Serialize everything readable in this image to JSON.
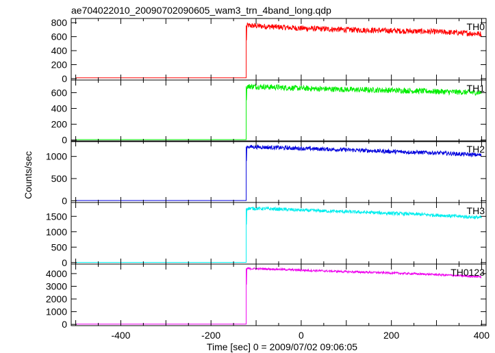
{
  "chart_data": {
    "type": "line",
    "title": "ae704022010_20090702090605_wam3_trn_4band_long.qdp",
    "xlabel": "Time [sec] 0 = 2009/07/02 09:06:05",
    "ylabel": "Counts/sec",
    "xlim": [
      -510,
      410
    ],
    "x_ticks": [
      -400,
      -200,
      0,
      200,
      400
    ],
    "burst_onset_x": -122,
    "panels": [
      {
        "name": "TH0",
        "color": "#ff0000",
        "ylim": [
          -20,
          860
        ],
        "y_ticks": [
          0,
          200,
          400,
          600,
          800
        ],
        "points": [
          [
            -500,
            12
          ],
          [
            -122,
            12
          ],
          [
            -121,
            760
          ],
          [
            -60,
            740
          ],
          [
            0,
            720
          ],
          [
            100,
            700
          ],
          [
            200,
            685
          ],
          [
            300,
            670
          ],
          [
            400,
            640
          ]
        ],
        "noise": 40
      },
      {
        "name": "TH1",
        "color": "#00ee00",
        "ylim": [
          -20,
          760
        ],
        "y_ticks": [
          0,
          200,
          400,
          600
        ],
        "points": [
          [
            -500,
            5
          ],
          [
            -122,
            5
          ],
          [
            -121,
            680
          ],
          [
            -60,
            670
          ],
          [
            0,
            655
          ],
          [
            100,
            640
          ],
          [
            200,
            630
          ],
          [
            300,
            615
          ],
          [
            400,
            600
          ]
        ],
        "noise": 35
      },
      {
        "name": "TH2",
        "color": "#0000dd",
        "ylim": [
          -40,
          1350
        ],
        "y_ticks": [
          0,
          500,
          1000
        ],
        "points": [
          [
            -500,
            5
          ],
          [
            -122,
            5
          ],
          [
            -121,
            1220
          ],
          [
            -60,
            1200
          ],
          [
            0,
            1180
          ],
          [
            100,
            1150
          ],
          [
            200,
            1110
          ],
          [
            300,
            1080
          ],
          [
            400,
            1030
          ]
        ],
        "noise": 45
      },
      {
        "name": "TH3",
        "color": "#00eeee",
        "ylim": [
          -50,
          1950
        ],
        "y_ticks": [
          0,
          500,
          1000,
          1500
        ],
        "points": [
          [
            -500,
            5
          ],
          [
            -122,
            5
          ],
          [
            -121,
            1760
          ],
          [
            -60,
            1740
          ],
          [
            0,
            1700
          ],
          [
            100,
            1650
          ],
          [
            200,
            1600
          ],
          [
            300,
            1540
          ],
          [
            400,
            1460
          ]
        ],
        "noise": 55
      },
      {
        "name": "TH0123",
        "color": "#ee00ee",
        "ylim": [
          -100,
          4750
        ],
        "y_ticks": [
          0,
          1000,
          2000,
          3000,
          4000
        ],
        "points": [
          [
            -500,
            20
          ],
          [
            -122,
            20
          ],
          [
            -121,
            4400
          ],
          [
            -60,
            4350
          ],
          [
            0,
            4270
          ],
          [
            100,
            4150
          ],
          [
            200,
            4050
          ],
          [
            300,
            3920
          ],
          [
            400,
            3750
          ]
        ],
        "noise": 80
      }
    ]
  }
}
